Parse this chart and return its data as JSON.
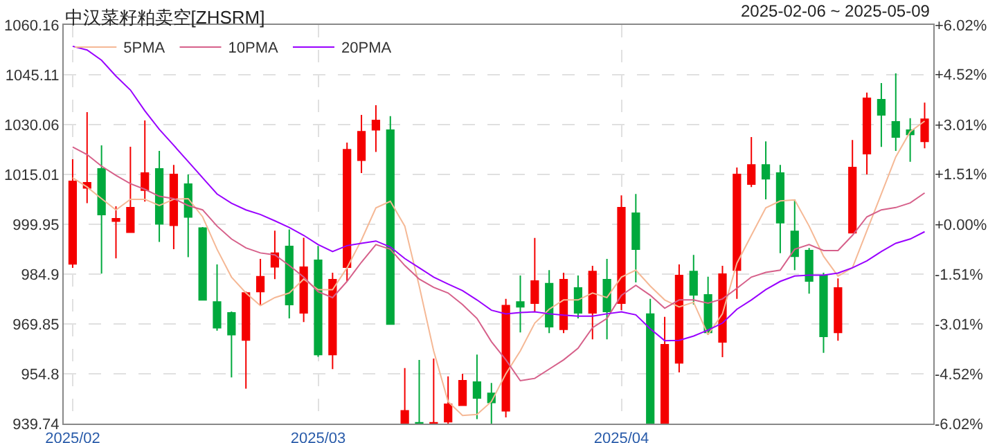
{
  "chart_data": {
    "type": "candlestick",
    "title": "中汉菜籽粕卖空[ZHSRM]",
    "subtitle": "2025-02-06 ~ 2025-05-09",
    "categories": [
      "2025/02",
      null,
      null,
      null,
      null,
      null,
      null,
      null,
      null,
      null,
      null,
      null,
      null,
      null,
      null,
      null,
      null,
      "2025/03",
      null,
      null,
      null,
      null,
      null,
      null,
      null,
      null,
      null,
      null,
      null,
      null,
      null,
      null,
      null,
      null,
      null,
      null,
      null,
      null,
      "2025/04",
      null,
      null,
      null,
      null,
      null,
      null,
      null,
      null,
      null,
      null,
      null,
      null,
      null,
      null,
      null,
      null,
      null,
      null,
      null,
      null,
      null
    ],
    "ohlc": [
      [
        987.96,
        1019.6,
        986.8,
        1012.9
      ],
      [
        1010.95,
        1033.8,
        1006.35,
        1012.48
      ],
      [
        1016.66,
        1023.77,
        985.03,
        1002.87
      ],
      [
        1000.91,
        1005.37,
        989.63,
        1001.61
      ],
      [
        997.57,
        1023.35,
        997.5,
        1004.96
      ],
      [
        1010.25,
        1031.3,
        1006.8,
        1015.4
      ],
      [
        1016.66,
        1022.1,
        994.6,
        1000.08
      ],
      [
        999.66,
        1017.9,
        992.4,
        1014.99
      ],
      [
        1012.06,
        1014.99,
        990.0,
        1002.17
      ],
      [
        998.8,
        999.1,
        977.1,
        977.1
      ],
      [
        976.5,
        987.8,
        967.8,
        968.7
      ],
      [
        973.2,
        973.6,
        953.7,
        966.6
      ],
      [
        965.0,
        979.6,
        950.3,
        979.2
      ],
      [
        979.6,
        989.5,
        975.4,
        984.1
      ],
      [
        987.1,
        998.0,
        983.4,
        991.2
      ],
      [
        993.25,
        998.4,
        971.5,
        975.7
      ],
      [
        973.2,
        995.9,
        970.4,
        987.0
      ],
      [
        989.1,
        993.4,
        959.9,
        960.6
      ],
      [
        960.6,
        985.3,
        956.2,
        983.2
      ],
      [
        987.0,
        1024.6,
        982.8,
        1022.5
      ],
      [
        1019.3,
        1032.97,
        1015.4,
        1027.9
      ],
      [
        1028.5,
        1035.9,
        1021.8,
        1031.3
      ],
      [
        1028.4,
        1032.6,
        969.8,
        969.8
      ],
      [
        939.74,
        956.5,
        939.74,
        943.6
      ],
      [
        940.0,
        959.0,
        939.74,
        939.74
      ],
      [
        939.74,
        959.4,
        939.74,
        940.0
      ],
      [
        940.3,
        954.0,
        939.74,
        945.6
      ],
      [
        945.3,
        954.8,
        945.3,
        952.7
      ],
      [
        952.3,
        960.6,
        941.1,
        947.5
      ],
      [
        948.9,
        952.0,
        939.74,
        946.1
      ],
      [
        943.6,
        977.4,
        941.6,
        975.4
      ],
      [
        976.5,
        984.5,
        967.3,
        975.0
      ],
      [
        976.1,
        995.8,
        973.5,
        982.8
      ],
      [
        982.0,
        986.1,
        967.1,
        969.0
      ],
      [
        968.2,
        985.3,
        967.1,
        983.2
      ],
      [
        980.7,
        984.5,
        971.5,
        973.2
      ],
      [
        973.2,
        987.4,
        965.2,
        985.7
      ],
      [
        983.2,
        989.5,
        965.2,
        973.6
      ],
      [
        976.1,
        1008.7,
        974.0,
        1004.96
      ],
      [
        1003.3,
        1009.1,
        982.4,
        992.4
      ],
      [
        972.8,
        977.4,
        939.74,
        939.74
      ],
      [
        939.74,
        972.0,
        939.74,
        963.6
      ],
      [
        958.1,
        987.8,
        955.2,
        984.5
      ],
      [
        985.7,
        990.7,
        975.7,
        978.6
      ],
      [
        978.6,
        984.1,
        966.5,
        967.3
      ],
      [
        964.4,
        987.4,
        959.8,
        984.9
      ],
      [
        986.1,
        1017.1,
        977.4,
        1015.0
      ],
      [
        1012.1,
        1026.3,
        1011.2,
        1017.9
      ],
      [
        1017.9,
        1025.0,
        1007.5,
        1013.7
      ],
      [
        1015.4,
        1017.9,
        991.2,
        1000.4
      ],
      [
        997.8,
        1007.5,
        986.1,
        990.3
      ],
      [
        992.0,
        992.8,
        979.0,
        982.8
      ],
      [
        984.5,
        985.3,
        961.1,
        966.1
      ],
      [
        967.3,
        983.6,
        964.8,
        980.7
      ],
      [
        997.4,
        1025.4,
        997.4,
        1017.1
      ],
      [
        1021.3,
        1039.7,
        1015.0,
        1038.0
      ],
      [
        1037.6,
        1042.6,
        1023.3,
        1033.0
      ],
      [
        1030.9,
        1045.5,
        1022.1,
        1026.3
      ],
      [
        1028.4,
        1032.0,
        1018.8,
        1027.1
      ],
      [
        1025.0,
        1036.7,
        1022.9,
        1031.7
      ]
    ],
    "colors": [
      "#f40000",
      "#f40000",
      "#00a93d",
      "#f40000",
      "#f40000",
      "#f40000",
      "#00a93d",
      "#f40000",
      "#00a93d",
      "#00a93d",
      "#00a93d",
      "#00a93d",
      "#f40000",
      "#f40000",
      "#f40000",
      "#00a93d",
      "#f40000",
      "#00a93d",
      "#f40000",
      "#f40000",
      "#f40000",
      "#f40000",
      "#00a93d",
      "#f40000",
      "#00a93d",
      "#f40000",
      "#f40000",
      "#f40000",
      "#00a93d",
      "#00a93d",
      "#f40000",
      "#00a93d",
      "#f40000",
      "#00a93d",
      "#f40000",
      "#00a93d",
      "#f40000",
      "#00a93d",
      "#f40000",
      "#00a93d",
      "#00a93d",
      "#f40000",
      "#f40000",
      "#00a93d",
      "#00a93d",
      "#f40000",
      "#f40000",
      "#f40000",
      "#00a93d",
      "#00a93d",
      "#00a93d",
      "#00a93d",
      "#00a93d",
      "#f40000",
      "#f40000",
      "#f40000",
      "#00a93d",
      "#00a93d",
      "#00a93d",
      "#f40000"
    ],
    "series": [
      {
        "name": "5PMA",
        "type": "line",
        "color": "#f5b895",
        "values": [
          1014.0,
          1011.2,
          1007.7,
          1004.3,
          1007.5,
          1007.5,
          1005.6,
          1007.5,
          1007.7,
          1002.2,
          992.4,
          984.0,
          979.2,
          975.4,
          977.8,
          979.2,
          983.4,
          980.2,
          980.2,
          986.8,
          995.2,
          1004.9,
          1006.9,
          999.4,
          981.3,
          961.7,
          946.4,
          942.2,
          942.5,
          946.4,
          954.8,
          961.7,
          970.1,
          974.3,
          977.1,
          977.1,
          979.2,
          977.8,
          984.0,
          986.1,
          981.3,
          977.1,
          975.0,
          976.4,
          966.6,
          972.9,
          988.2,
          996.6,
          1004.9,
          1007.0,
          1007.3,
          999.4,
          990.3,
          984.3,
          986.8,
          998.0,
          1009.1,
          1020.3,
          1027.9,
          1031.1
        ]
      },
      {
        "name": "10PMA",
        "type": "line",
        "color": "#d6608a",
        "values": [
          1023.3,
          1021.0,
          1017.5,
          1014.7,
          1012.2,
          1010.5,
          1008.4,
          1007.7,
          1005.6,
          1004.3,
          999.4,
          995.5,
          992.8,
          991.3,
          990.7,
          987.5,
          984.0,
          979.6,
          977.8,
          982.7,
          988.5,
          993.8,
          992.4,
          987.5,
          983.4,
          980.9,
          979.2,
          975.7,
          971.5,
          964.5,
          959.0,
          952.7,
          953.4,
          956.2,
          959.0,
          962.5,
          968.7,
          971.5,
          978.5,
          981.5,
          978.5,
          974.6,
          977.1,
          977.1,
          976.1,
          977.4,
          980.6,
          984.0,
          985.4,
          986.1,
          992.4,
          993.8,
          992.0,
          992.0,
          996.6,
          1002.2,
          1004.3,
          1005.0,
          1006.4,
          1009.4
        ]
      },
      {
        "name": "20PMA",
        "type": "line",
        "color": "#9900ff",
        "values": [
          1053.7,
          1052.6,
          1049.5,
          1044.7,
          1040.5,
          1034.2,
          1028.6,
          1023.8,
          1018.9,
          1014.0,
          1009.1,
          1006.3,
          1004.3,
          1002.9,
          1001.0,
          999.0,
          996.6,
          993.8,
          991.7,
          993.5,
          994.2,
          994.9,
          993.1,
          989.6,
          986.8,
          984.0,
          981.9,
          979.9,
          977.1,
          974.0,
          972.9,
          973.3,
          973.5,
          972.9,
          972.5,
          972.2,
          972.2,
          972.9,
          973.5,
          972.6,
          968.4,
          964.8,
          964.9,
          966.2,
          968.0,
          970.1,
          974.3,
          977.1,
          980.2,
          982.7,
          984.3,
          984.6,
          984.6,
          985.2,
          986.8,
          988.9,
          991.7,
          994.2,
          995.5,
          997.7
        ]
      }
    ],
    "ylim": [
      939.74,
      1060.16
    ],
    "yticks": [
      939.74,
      954.8,
      969.85,
      984.9,
      999.95,
      1015.01,
      1030.06,
      1045.11,
      1060.16
    ],
    "y2lim": [
      -6.02,
      6.02
    ],
    "y2ticks": [
      {
        "value": -6.02,
        "label": "-6.02%"
      },
      {
        "value": -4.52,
        "label": "-4.52%"
      },
      {
        "value": -3.01,
        "label": "-3.01%"
      },
      {
        "value": -1.51,
        "label": "-1.51%"
      },
      {
        "value": 0,
        "label": "+0.00%"
      },
      {
        "value": 1.51,
        "label": "+1.51%"
      },
      {
        "value": 3.01,
        "label": "+3.01%"
      },
      {
        "value": 4.52,
        "label": "+4.52%"
      },
      {
        "value": 6.02,
        "label": "+6.02%"
      }
    ],
    "grid": true,
    "legend": "top left"
  }
}
